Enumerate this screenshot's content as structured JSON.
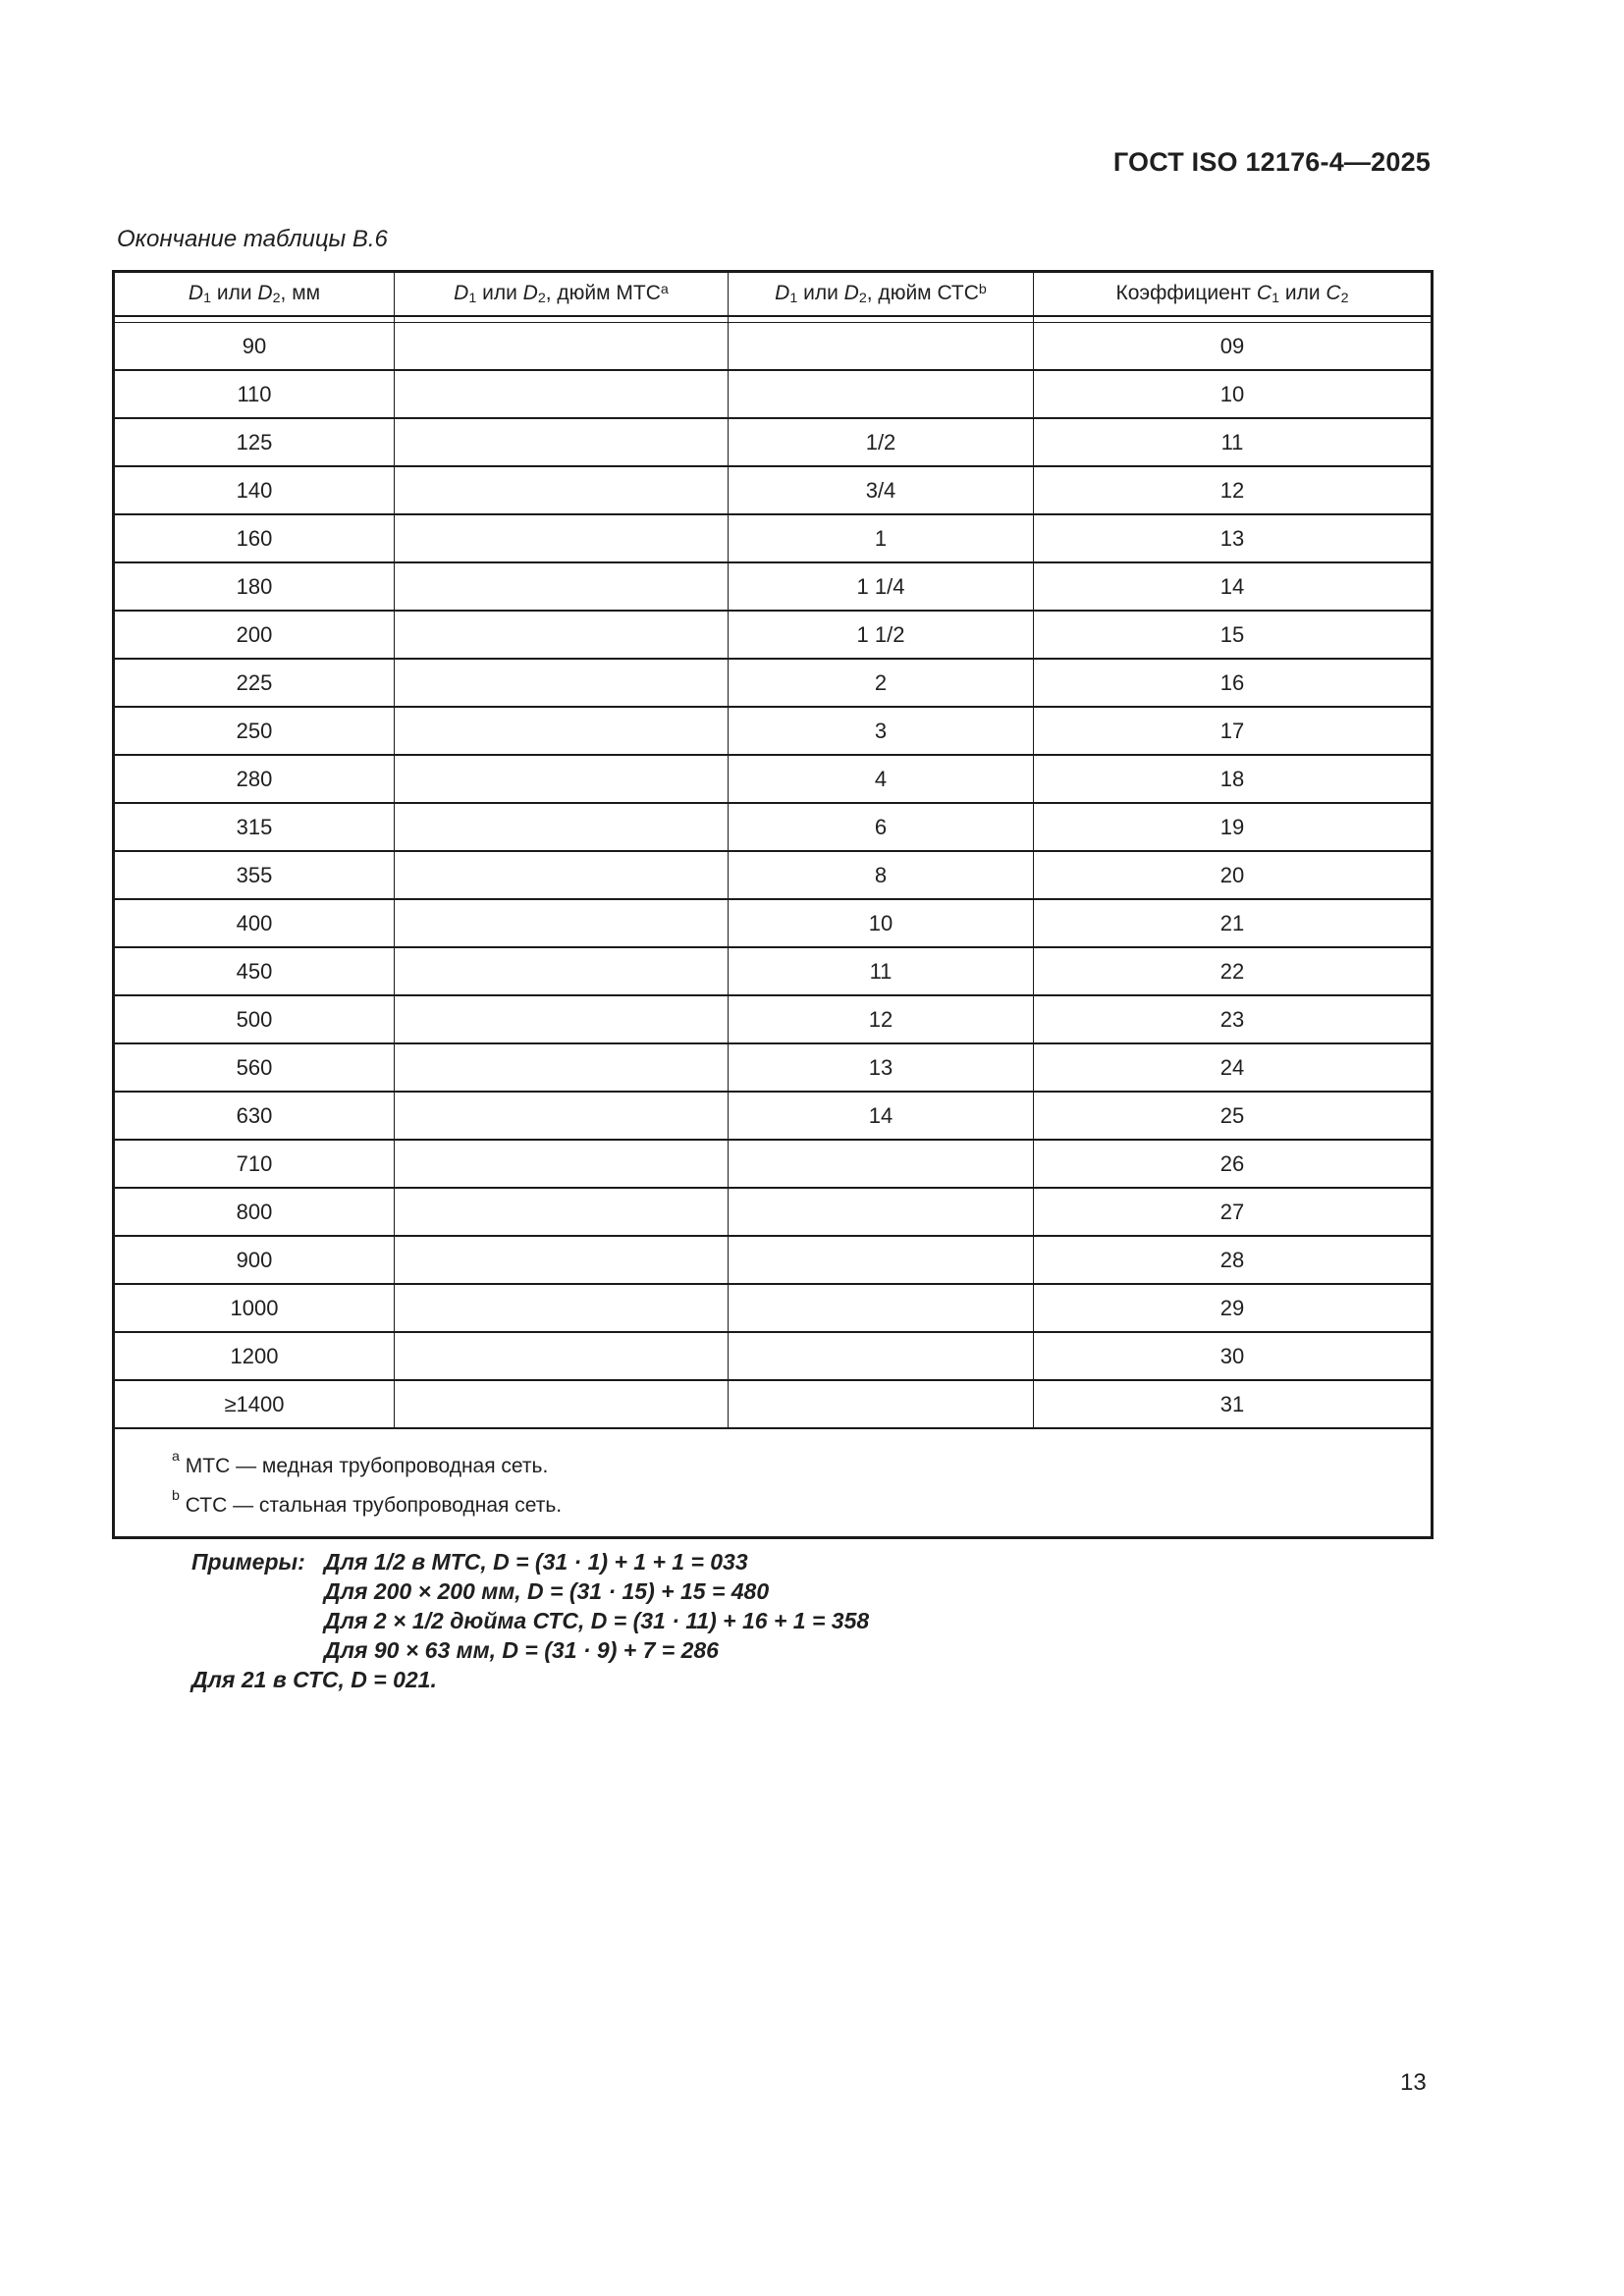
{
  "page": {
    "header": "ГОСТ ISO 12176-4—2025",
    "table_caption": "Окончание таблицы В.6",
    "page_number": "13"
  },
  "colors": {
    "text": "#1f1f1f",
    "border": "#1a1a1a",
    "background": "#ffffff"
  },
  "table": {
    "columns_html": [
      "<i>D</i><sub>1</sub> или <i>D</i><sub>2</sub>, мм",
      "<i>D</i><sub>1</sub> или <i>D</i><sub>2</sub>, дюйм МТС<sup>a</sup>",
      "<i>D</i><sub>1</sub> или <i>D</i><sub>2</sub>, дюйм СТС<sup>b</sup>",
      "Коэффициент <i>C</i><sub>1</sub> или <i>C</i><sub>2</sub>"
    ],
    "rows": [
      {
        "mm": "90",
        "inch_mtc": "",
        "inch_ctc": "",
        "coef": "09"
      },
      {
        "mm": "110",
        "inch_mtc": "",
        "inch_ctc": "",
        "coef": "10"
      },
      {
        "mm": "125",
        "inch_mtc": "",
        "inch_ctc": "1/2",
        "coef": "11"
      },
      {
        "mm": "140",
        "inch_mtc": "",
        "inch_ctc": "3/4",
        "coef": "12"
      },
      {
        "mm": "160",
        "inch_mtc": "",
        "inch_ctc": "1",
        "coef": "13"
      },
      {
        "mm": "180",
        "inch_mtc": "",
        "inch_ctc": "1 1/4",
        "coef": "14"
      },
      {
        "mm": "200",
        "inch_mtc": "",
        "inch_ctc": "1 1/2",
        "coef": "15"
      },
      {
        "mm": "225",
        "inch_mtc": "",
        "inch_ctc": "2",
        "coef": "16"
      },
      {
        "mm": "250",
        "inch_mtc": "",
        "inch_ctc": "3",
        "coef": "17"
      },
      {
        "mm": "280",
        "inch_mtc": "",
        "inch_ctc": "4",
        "coef": "18"
      },
      {
        "mm": "315",
        "inch_mtc": "",
        "inch_ctc": "6",
        "coef": "19"
      },
      {
        "mm": "355",
        "inch_mtc": "",
        "inch_ctc": "8",
        "coef": "20"
      },
      {
        "mm": "400",
        "inch_mtc": "",
        "inch_ctc": "10",
        "coef": "21"
      },
      {
        "mm": "450",
        "inch_mtc": "",
        "inch_ctc": "11",
        "coef": "22"
      },
      {
        "mm": "500",
        "inch_mtc": "",
        "inch_ctc": "12",
        "coef": "23"
      },
      {
        "mm": "560",
        "inch_mtc": "",
        "inch_ctc": "13",
        "coef": "24"
      },
      {
        "mm": "630",
        "inch_mtc": "",
        "inch_ctc": "14",
        "coef": "25"
      },
      {
        "mm": "710",
        "inch_mtc": "",
        "inch_ctc": "",
        "coef": "26"
      },
      {
        "mm": "800",
        "inch_mtc": "",
        "inch_ctc": "",
        "coef": "27"
      },
      {
        "mm": "900",
        "inch_mtc": "",
        "inch_ctc": "",
        "coef": "28"
      },
      {
        "mm": "1000",
        "inch_mtc": "",
        "inch_ctc": "",
        "coef": "29"
      },
      {
        "mm": "1200",
        "inch_mtc": "",
        "inch_ctc": "",
        "coef": "30"
      },
      {
        "mm": "≥1400",
        "inch_mtc": "",
        "inch_ctc": "",
        "coef": "31"
      }
    ],
    "footnotes_html": [
      "<sup>a</sup> МТС — медная трубопроводная сеть.",
      "<sup>b</sup> СТС — стальная трубопроводная сеть."
    ]
  },
  "examples": {
    "label": "Примеры:",
    "lines": [
      "Для 1/2 в МТС, D = (31 · 1) + 1 + 1 = 033",
      "Для 200 × 200 мм, D = (31 · 15) + 15 = 480",
      "Для 2 × 1/2 дюйма СТС, D = (31 · 11) + 16 + 1 = 358",
      "Для 90 × 63 мм, D = (31 · 9) + 7 = 286"
    ],
    "last_line": "Для 21 в СТС, D = 021."
  }
}
